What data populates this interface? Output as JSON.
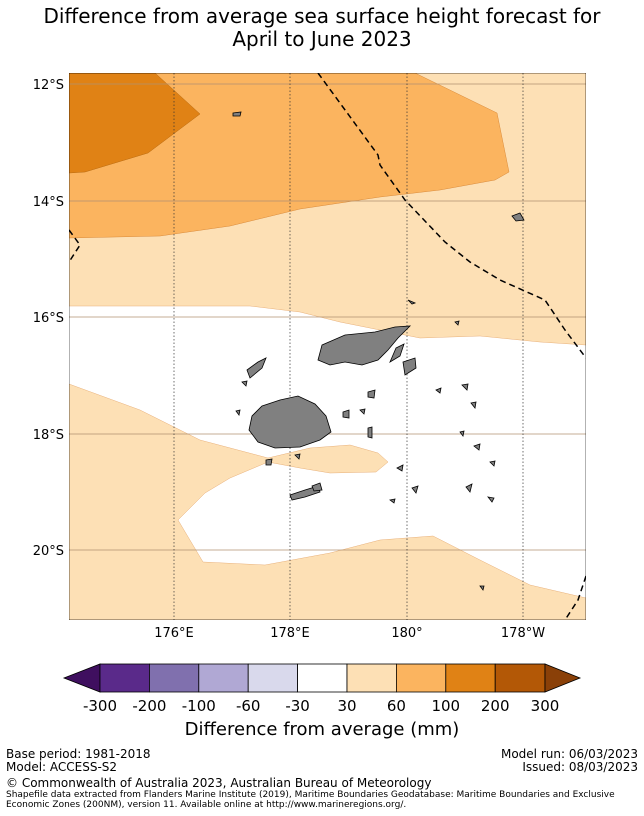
{
  "title": {
    "line1": "Difference from average sea surface height forecast for",
    "line2": "April to June 2023"
  },
  "map": {
    "lat_labels": [
      "12°S",
      "14°S",
      "16°S",
      "18°S",
      "20°S"
    ],
    "lon_labels": [
      "176°E",
      "178°E",
      "180°",
      "178°W"
    ],
    "land_color": "#808080"
  },
  "colorbar": {
    "label": "Difference from average (mm)",
    "tick_labels": [
      "-300",
      "-200",
      "-100",
      "-60",
      "-30",
      "30",
      "60",
      "100",
      "200",
      "300"
    ],
    "colors": [
      "#3f0f5f",
      "#5a2a8a",
      "#8070ae",
      "#b0a8d4",
      "#d9d9ec",
      "#ffffff",
      "#fde0b5",
      "#fbb45f",
      "#e08215",
      "#b35806",
      "#8a4008"
    ]
  },
  "footer": {
    "base_period": "Base period: 1981-2018",
    "model": "Model: ACCESS-S2",
    "model_run": "Model run: 06/03/2023",
    "issued": "Issued: 08/03/2023",
    "copyright": "© Commonwealth of Australia 2023, Australian Bureau of Meteorology",
    "shapefile_1": "Shapefile data extracted from Flanders Marine Institute (2019), Maritime Boundaries Geodatabase: Maritime Boundaries and Exclusive",
    "shapefile_2": "Economic Zones (200NM), version 11. Available online at http://www.marineregions.org/."
  }
}
